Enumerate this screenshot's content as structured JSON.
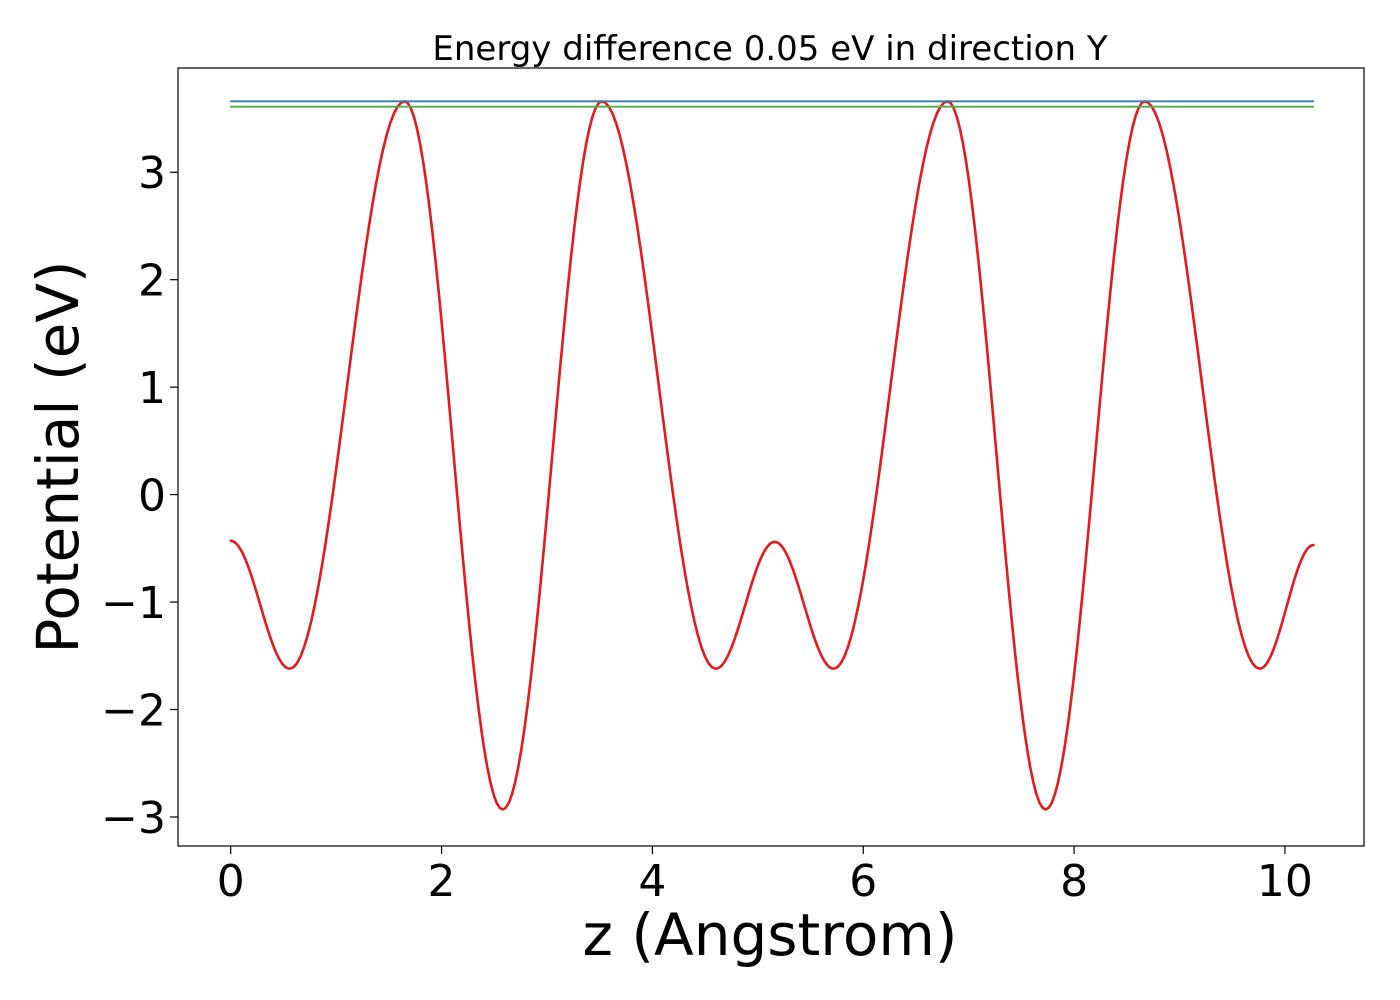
{
  "chart_data": {
    "type": "line",
    "title": "Energy difference 0.05 eV in direction Y",
    "xlabel": "z (Angstrom)",
    "ylabel": "Potential (eV)",
    "xlim": [
      -0.5,
      10.75
    ],
    "ylim": [
      -3.27,
      3.97
    ],
    "xticks": [
      0,
      2,
      4,
      6,
      8,
      10
    ],
    "xtick_labels": [
      "0",
      "2",
      "4",
      "6",
      "8",
      "10"
    ],
    "yticks": [
      3,
      2,
      1,
      0,
      -1,
      -2,
      -3
    ],
    "ytick_labels": [
      "3",
      "2",
      "1",
      "0",
      "−1",
      "−2",
      "−3"
    ],
    "grid": false,
    "series": [
      {
        "name": "potential",
        "color": "#e41a1c",
        "x": [
          0.0,
          0.56,
          1.65,
          2.58,
          3.52,
          4.6,
          5.16,
          5.72,
          6.8,
          7.73,
          8.67,
          9.76,
          10.27
        ],
        "y": [
          -0.43,
          -1.62,
          3.66,
          -2.93,
          3.66,
          -1.62,
          -0.44,
          -1.62,
          3.66,
          -2.93,
          3.66,
          -1.62,
          -0.47
        ]
      },
      {
        "name": "upper level",
        "color": "#377eb8",
        "x": [
          0.0,
          10.27
        ],
        "y": [
          3.66,
          3.66
        ]
      },
      {
        "name": "lower level",
        "color": "#4daf4a",
        "x": [
          0.0,
          10.27
        ],
        "y": [
          3.61,
          3.61
        ]
      }
    ]
  }
}
